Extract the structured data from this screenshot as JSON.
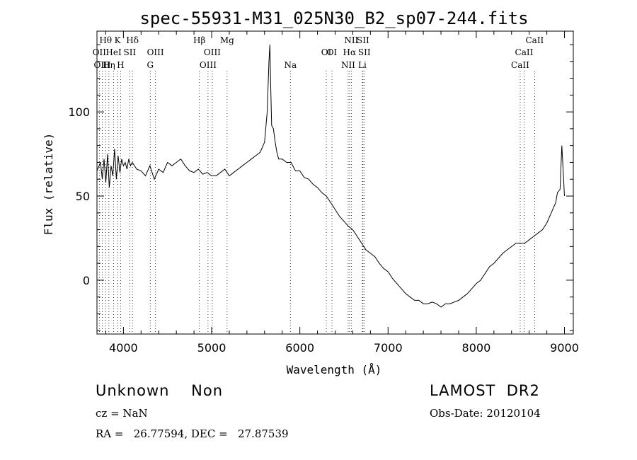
{
  "chart_data": {
    "type": "line",
    "title": "spec-55931-M31_025N30_B2_sp07-244.fits",
    "xlabel": "Wavelength (Å)",
    "ylabel": "Flux (relative)",
    "xlim": [
      3700,
      9100
    ],
    "ylim": [
      -32,
      148
    ],
    "xticks": [
      4000,
      5000,
      6000,
      7000,
      8000,
      9000
    ],
    "yticks": [
      0,
      50,
      100
    ],
    "grid": false,
    "series": [
      {
        "x": [
          3700,
          3740,
          3760,
          3780,
          3800,
          3820,
          3840,
          3860,
          3880,
          3900,
          3920,
          3940,
          3960,
          3980,
          4000,
          4020,
          4040,
          4060,
          4080,
          4100,
          4150,
          4200,
          4250,
          4300,
          4350,
          4400,
          4450,
          4500,
          4550,
          4600,
          4650,
          4700,
          4750,
          4800,
          4850,
          4900,
          4950,
          5000,
          5050,
          5100,
          5150,
          5200,
          5250,
          5300,
          5350,
          5400,
          5450,
          5500,
          5550,
          5600,
          5630,
          5650,
          5660,
          5670,
          5680,
          5700,
          5720,
          5740,
          5760,
          5800,
          5850,
          5900,
          5950,
          6000,
          6050,
          6100,
          6150,
          6200,
          6250,
          6300,
          6350,
          6400,
          6450,
          6500,
          6550,
          6600,
          6650,
          6700,
          6750,
          6800,
          6850,
          6900,
          6950,
          7000,
          7050,
          7100,
          7150,
          7200,
          7250,
          7300,
          7350,
          7400,
          7450,
          7500,
          7550,
          7600,
          7650,
          7700,
          7750,
          7800,
          7850,
          7900,
          7950,
          8000,
          8050,
          8100,
          8150,
          8200,
          8250,
          8300,
          8350,
          8400,
          8450,
          8500,
          8550,
          8600,
          8650,
          8700,
          8750,
          8800,
          8850,
          8900,
          8920,
          8950,
          8970,
          8990,
          9000
        ],
        "y": [
          65,
          70,
          60,
          72,
          58,
          75,
          55,
          68,
          62,
          78,
          60,
          74,
          64,
          72,
          68,
          70,
          66,
          72,
          68,
          70,
          66,
          65,
          62,
          68,
          60,
          66,
          64,
          70,
          68,
          70,
          72,
          68,
          65,
          64,
          66,
          63,
          64,
          62,
          62,
          64,
          66,
          62,
          64,
          66,
          68,
          70,
          72,
          74,
          76,
          82,
          100,
          130,
          140,
          115,
          92,
          90,
          82,
          76,
          72,
          72,
          70,
          70,
          65,
          65,
          61,
          60,
          57,
          55,
          52,
          50,
          46,
          42,
          38,
          35,
          32,
          30,
          26,
          22,
          18,
          16,
          14,
          10,
          7,
          5,
          1,
          -2,
          -5,
          -8,
          -10,
          -12,
          -12,
          -14,
          -14,
          -13,
          -14,
          -16,
          -14,
          -14,
          -13,
          -12,
          -10,
          -8,
          -5,
          -2,
          0,
          4,
          8,
          10,
          13,
          16,
          18,
          20,
          22,
          22,
          22,
          24,
          26,
          28,
          30,
          34,
          40,
          46,
          52,
          54,
          80,
          60,
          50
        ]
      }
    ],
    "line_markers": [
      {
        "label": "Hθ",
        "x": 3798,
        "row": 0
      },
      {
        "label": "K",
        "x": 3934,
        "row": 0
      },
      {
        "label": "Hδ",
        "x": 4102,
        "row": 0
      },
      {
        "label": "Hβ",
        "x": 4861,
        "row": 0
      },
      {
        "label": "Mg",
        "x": 5175,
        "row": 0
      },
      {
        "label": "NII",
        "x": 6583,
        "row": 0
      },
      {
        "label": "SII",
        "x": 6716,
        "row": 0
      },
      {
        "label": "CaII",
        "x": 8662,
        "row": 0
      },
      {
        "label": "OII",
        "x": 3727,
        "row": 1
      },
      {
        "label": "HeI",
        "x": 3889,
        "row": 1
      },
      {
        "label": "SII",
        "x": 4072,
        "row": 1
      },
      {
        "label": "OIII",
        "x": 4363,
        "row": 1
      },
      {
        "label": "OIII",
        "x": 5007,
        "row": 1
      },
      {
        "label": "OI",
        "x": 6300,
        "row": 1
      },
      {
        "label": "Hα",
        "x": 6563,
        "row": 1
      },
      {
        "label": "SII",
        "x": 6731,
        "row": 1
      },
      {
        "label": "CaII",
        "x": 8542,
        "row": 1
      },
      {
        "label": "OIII",
        "x": 3760,
        "row": 2
      },
      {
        "label": "Hη",
        "x": 3835,
        "row": 2
      },
      {
        "label": "H",
        "x": 3968,
        "row": 2
      },
      {
        "label": "G",
        "x": 4304,
        "row": 2
      },
      {
        "label": "OIII",
        "x": 4959,
        "row": 2
      },
      {
        "label": "Na",
        "x": 5893,
        "row": 2
      },
      {
        "label": "OI",
        "x": 6364,
        "row": 1
      },
      {
        "label": "NII",
        "x": 6548,
        "row": 2
      },
      {
        "label": "Li",
        "x": 6708,
        "row": 2
      },
      {
        "label": "CaII",
        "x": 8498,
        "row": 2
      }
    ]
  },
  "info": {
    "class_text": "Unknown    Non",
    "survey": "LAMOST  DR2",
    "cz": "cz = NaN",
    "obs_date": "Obs-Date: 20120104",
    "coords": "RA =   26.77594, DEC =   27.87539"
  }
}
